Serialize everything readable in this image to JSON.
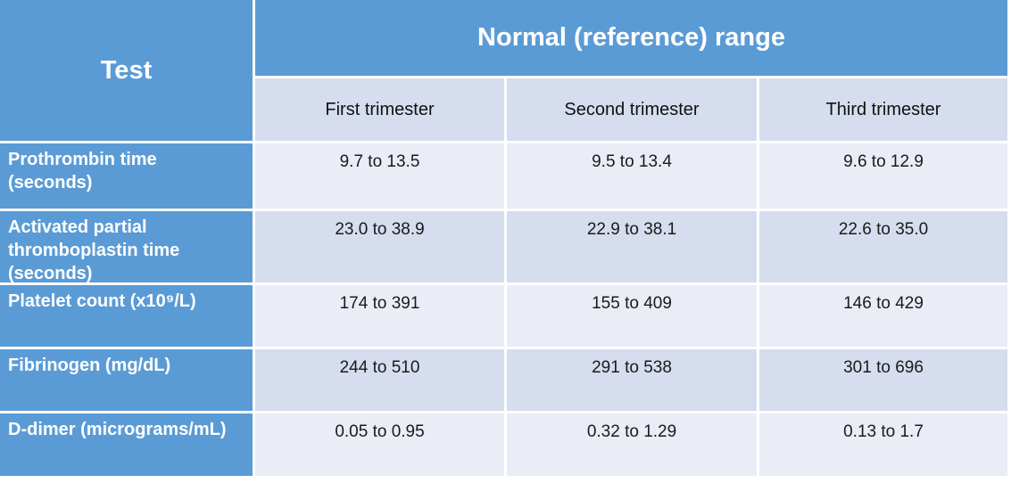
{
  "table": {
    "corner_header": "Test",
    "group_header": "Normal (reference) range",
    "column_headers": [
      "First trimester",
      "Second trimester",
      "Third trimester"
    ],
    "rows": [
      {
        "test": "Prothrombin time (seconds)",
        "values": [
          "9.7 to 13.5",
          "9.5 to 13.4",
          "9.6 to 12.9"
        ]
      },
      {
        "test": "Activated partial thromboplastin time (seconds)",
        "values": [
          "23.0 to 38.9",
          "22.9 to 38.1",
          "22.6 to 35.0"
        ]
      },
      {
        "test": "Platelet count (x10⁹/L)",
        "values": [
          "174 to 391",
          "155 to 409",
          "146 to 429"
        ]
      },
      {
        "test": "Fibrinogen (mg/dL)",
        "values": [
          "244 to 510",
          "291 to 538",
          "301 to 696"
        ]
      },
      {
        "test": "D-dimer (micrograms/mL)",
        "values": [
          "0.05 to 0.95",
          "0.32 to 1.29",
          "0.13 to 1.7"
        ]
      }
    ],
    "colors": {
      "header_blue": "#5B9BD5",
      "row_light": "#EAEDF6",
      "row_dark": "#D5DDEE",
      "header_text": "#FFFFFF",
      "body_text": "#1A1A1A"
    }
  }
}
